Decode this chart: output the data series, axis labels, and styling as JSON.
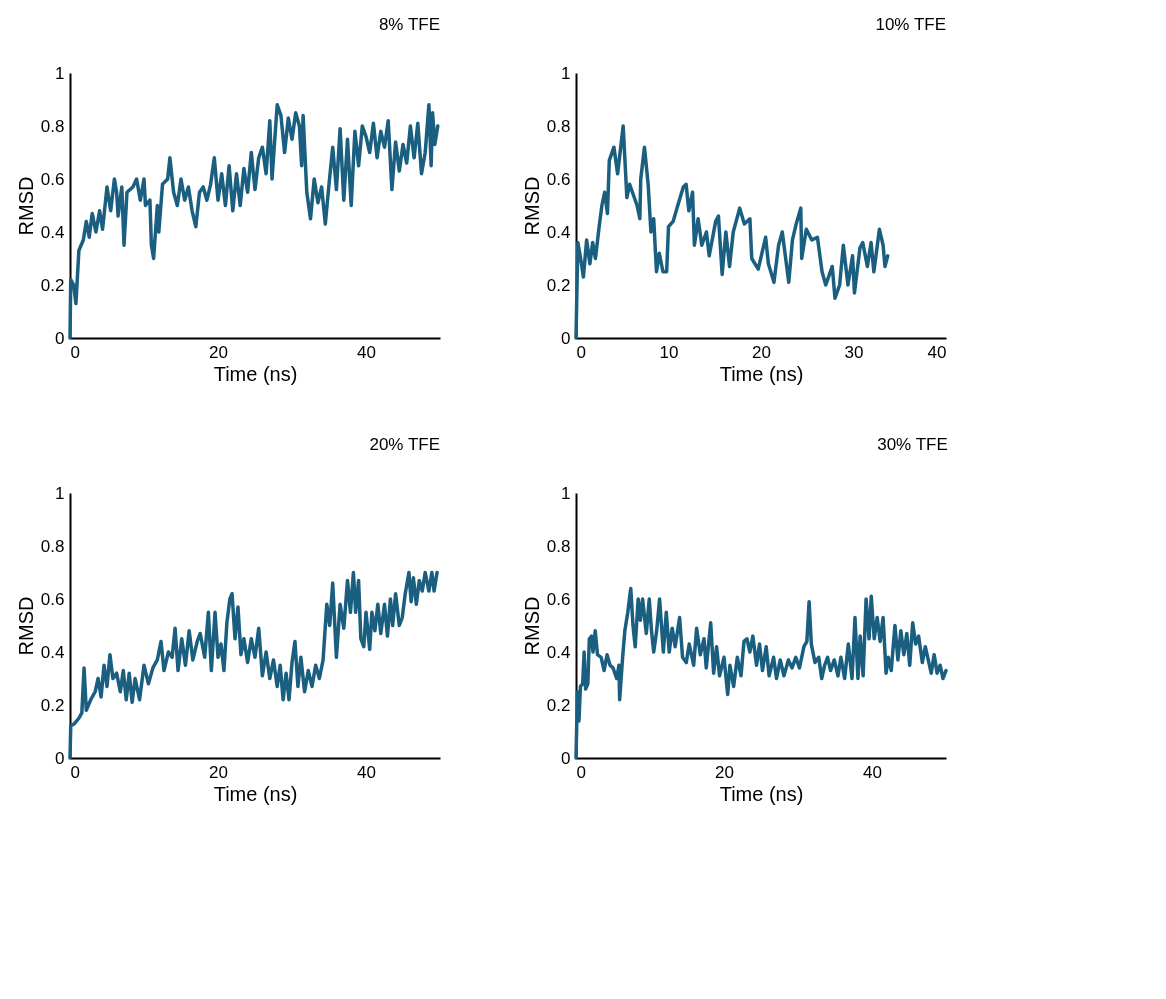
{
  "chart_data": [
    {
      "type": "line",
      "title": "8% TFE",
      "xlabel": "Time (ns)",
      "ylabel": "RMSD",
      "xlim": [
        0,
        50
      ],
      "xticks": [
        0,
        20,
        40
      ],
      "ylim": [
        0,
        1
      ],
      "yticks": [
        0,
        0.2,
        0.4,
        0.6,
        0.8,
        1
      ],
      "x": [
        0,
        0.1,
        0.5,
        0.8,
        1.2,
        1.8,
        2.2,
        2.6,
        3,
        3.5,
        4,
        4.4,
        5,
        5.5,
        6,
        6.3,
        6.5,
        7,
        7.3,
        7.7,
        8.5,
        9,
        9.5,
        10,
        10.2,
        10.8,
        11,
        11.3,
        11.8,
        12,
        12.5,
        13.2,
        13.5,
        14,
        14.5,
        15,
        15.5,
        16,
        16.5,
        17,
        17.5,
        18,
        18.5,
        19,
        19.5,
        20,
        20.5,
        21,
        21.5,
        22,
        22.5,
        23,
        23.5,
        24,
        24.5,
        25,
        25.5,
        26,
        26.5,
        27,
        27.3,
        28,
        28.5,
        29,
        29.5,
        30,
        30.5,
        31,
        31.3,
        31.5,
        32,
        32.5,
        33,
        33.5,
        34,
        34.5,
        35,
        35.5,
        36,
        36.5,
        37,
        37.5,
        38,
        38.5,
        39,
        39.5,
        40,
        40.5,
        41,
        41.5,
        42,
        42.5,
        43,
        43.5,
        44,
        44.5,
        45,
        45.5,
        46,
        46.5,
        47,
        47.5,
        48,
        48.5,
        48.8,
        49,
        49.3,
        49.7
      ],
      "series": [
        {
          "color": "#1a5f80",
          "values": [
            0,
            0.22,
            0.2,
            0.13,
            0.33,
            0.37,
            0.44,
            0.38,
            0.47,
            0.4,
            0.48,
            0.41,
            0.57,
            0.48,
            0.6,
            0.55,
            0.46,
            0.57,
            0.35,
            0.55,
            0.57,
            0.6,
            0.52,
            0.6,
            0.5,
            0.52,
            0.35,
            0.3,
            0.5,
            0.4,
            0.58,
            0.6,
            0.68,
            0.55,
            0.5,
            0.6,
            0.52,
            0.57,
            0.48,
            0.42,
            0.55,
            0.57,
            0.52,
            0.58,
            0.68,
            0.52,
            0.62,
            0.5,
            0.65,
            0.48,
            0.62,
            0.5,
            0.64,
            0.55,
            0.7,
            0.56,
            0.68,
            0.72,
            0.62,
            0.82,
            0.6,
            0.88,
            0.84,
            0.7,
            0.83,
            0.75,
            0.85,
            0.8,
            0.65,
            0.84,
            0.55,
            0.45,
            0.6,
            0.51,
            0.57,
            0.43,
            0.58,
            0.72,
            0.56,
            0.79,
            0.52,
            0.75,
            0.5,
            0.78,
            0.65,
            0.8,
            0.76,
            0.7,
            0.81,
            0.68,
            0.78,
            0.72,
            0.82,
            0.56,
            0.74,
            0.63,
            0.73,
            0.66,
            0.8,
            0.68,
            0.81,
            0.62,
            0.7,
            0.88,
            0.65,
            0.85,
            0.73,
            0.8
          ]
        }
      ]
    },
    {
      "type": "line",
      "title": "10% TFE",
      "xlabel": "Time (ns)",
      "ylabel": "RMSD",
      "xlim": [
        0,
        40
      ],
      "xticks": [
        0,
        10,
        20,
        30,
        40
      ],
      "ylim": [
        0,
        1
      ],
      "yticks": [
        0,
        0.2,
        0.4,
        0.6,
        0.8,
        1
      ],
      "x": [
        0,
        0.2,
        0.5,
        0.8,
        1.15,
        1.5,
        1.8,
        2.1,
        2.5,
        2.8,
        3.1,
        3.4,
        3.6,
        4.1,
        4.5,
        5.1,
        5.5,
        5.8,
        6.1,
        6.6,
        6.9,
        7.0,
        7.4,
        7.8,
        8.1,
        8.4,
        8.7,
        9.0,
        9.4,
        9.8,
        10.0,
        10.5,
        11.0,
        11.6,
        11.9,
        12.2,
        12.6,
        12.8,
        13.2,
        13.6,
        14.1,
        14.4,
        15.1,
        15.4,
        15.8,
        16.2,
        16.6,
        17.0,
        17.7,
        18.2,
        18.8,
        19.0,
        19.7,
        20.5,
        20.8,
        21.4,
        21.9,
        22.3,
        23.0,
        23.4,
        23.8,
        24.3,
        24.4,
        24.9,
        25.5,
        26.1,
        26.6,
        27.0,
        27.7,
        28.0,
        28.5,
        28.9,
        29.4,
        29.9,
        30.1,
        30.7,
        31.0,
        31.5,
        31.9,
        32.2,
        32.8,
        33.2,
        33.4,
        33.7
      ],
      "series": [
        {
          "color": "#1a5f80",
          "values": [
            0,
            0.36,
            0.3,
            0.23,
            0.37,
            0.28,
            0.36,
            0.3,
            0.42,
            0.5,
            0.55,
            0.47,
            0.67,
            0.72,
            0.62,
            0.8,
            0.53,
            0.58,
            0.55,
            0.5,
            0.45,
            0.6,
            0.72,
            0.58,
            0.4,
            0.45,
            0.25,
            0.32,
            0.25,
            0.25,
            0.42,
            0.44,
            0.5,
            0.57,
            0.58,
            0.48,
            0.55,
            0.35,
            0.45,
            0.35,
            0.4,
            0.31,
            0.44,
            0.46,
            0.24,
            0.4,
            0.27,
            0.4,
            0.49,
            0.43,
            0.45,
            0.3,
            0.26,
            0.38,
            0.28,
            0.21,
            0.35,
            0.4,
            0.21,
            0.37,
            0.43,
            0.49,
            0.3,
            0.41,
            0.37,
            0.38,
            0.25,
            0.2,
            0.27,
            0.15,
            0.2,
            0.35,
            0.2,
            0.31,
            0.17,
            0.34,
            0.36,
            0.27,
            0.36,
            0.25,
            0.41,
            0.35,
            0.27,
            0.31
          ]
        }
      ]
    },
    {
      "type": "line",
      "title": "20% TFE",
      "xlabel": "Time (ns)",
      "ylabel": "RMSD",
      "xlim": [
        0,
        50
      ],
      "xticks": [
        0,
        20,
        40
      ],
      "ylim": [
        0,
        1
      ],
      "yticks": [
        0,
        0.2,
        0.4,
        0.6,
        0.8,
        1
      ],
      "x": [
        0,
        0.1,
        0.6,
        1.2,
        1.6,
        1.9,
        2.2,
        2.8,
        3.4,
        3.8,
        4.2,
        4.6,
        5,
        5.4,
        5.8,
        6.3,
        6.8,
        7.2,
        7.6,
        8,
        8.4,
        8.8,
        9.4,
        10,
        10.6,
        11.2,
        11.8,
        12.3,
        12.7,
        13.3,
        13.8,
        14.2,
        14.6,
        15.1,
        15.6,
        16.1,
        16.6,
        17.2,
        17.6,
        18.2,
        18.7,
        19.1,
        19.6,
        20,
        20.4,
        20.8,
        21.2,
        21.6,
        21.9,
        22.3,
        22.7,
        23.1,
        23.5,
        24,
        24.5,
        25,
        25.5,
        26,
        26.5,
        27,
        27.5,
        28,
        28.4,
        28.8,
        29.2,
        29.6,
        30,
        30.4,
        30.8,
        31.2,
        31.7,
        32.2,
        32.7,
        33.2,
        33.7,
        34.2,
        34.7,
        35.1,
        35.5,
        36,
        36.5,
        37,
        37.5,
        37.9,
        38.3,
        38.6,
        39,
        39.3,
        39.7,
        40,
        40.5,
        40.8,
        41.2,
        41.6,
        42,
        42.5,
        42.9,
        43.3,
        43.6,
        44,
        44.5,
        44.9,
        45.3,
        45.8,
        46.1,
        46.4,
        46.8,
        47.2,
        47.6,
        48,
        48.5,
        48.9,
        49.2,
        49.6
      ],
      "series": [
        {
          "color": "#1a5f80",
          "values": [
            0,
            0.12,
            0.13,
            0.15,
            0.17,
            0.34,
            0.18,
            0.22,
            0.25,
            0.3,
            0.23,
            0.35,
            0.27,
            0.39,
            0.3,
            0.32,
            0.25,
            0.33,
            0.22,
            0.32,
            0.21,
            0.3,
            0.22,
            0.35,
            0.28,
            0.34,
            0.37,
            0.44,
            0.33,
            0.4,
            0.38,
            0.49,
            0.33,
            0.45,
            0.35,
            0.48,
            0.37,
            0.44,
            0.47,
            0.38,
            0.55,
            0.33,
            0.55,
            0.38,
            0.43,
            0.33,
            0.51,
            0.6,
            0.62,
            0.45,
            0.57,
            0.39,
            0.45,
            0.36,
            0.45,
            0.38,
            0.49,
            0.31,
            0.4,
            0.3,
            0.37,
            0.27,
            0.35,
            0.22,
            0.32,
            0.22,
            0.36,
            0.44,
            0.27,
            0.38,
            0.25,
            0.33,
            0.27,
            0.35,
            0.3,
            0.37,
            0.58,
            0.5,
            0.66,
            0.38,
            0.58,
            0.49,
            0.67,
            0.55,
            0.7,
            0.55,
            0.67,
            0.45,
            0.42,
            0.55,
            0.41,
            0.55,
            0.48,
            0.58,
            0.47,
            0.58,
            0.46,
            0.6,
            0.5,
            0.62,
            0.5,
            0.53,
            0.62,
            0.7,
            0.59,
            0.68,
            0.58,
            0.67,
            0.63,
            0.7,
            0.63,
            0.7,
            0.63,
            0.7
          ]
        }
      ]
    },
    {
      "type": "line",
      "title": "30% TFE",
      "xlabel": "Time (ns)",
      "ylabel": "RMSD",
      "xlim": [
        0,
        50
      ],
      "xticks": [
        0,
        20,
        40
      ],
      "ylim": [
        0,
        1
      ],
      "yticks": [
        0,
        0.2,
        0.4,
        0.6,
        0.8,
        1
      ],
      "x": [
        0,
        0.2,
        0.4,
        0.6,
        0.9,
        1.1,
        1.3,
        1.6,
        1.8,
        2.1,
        2.3,
        2.6,
        2.9,
        3.4,
        3.8,
        4.2,
        4.6,
        5,
        5.5,
        5.8,
        5.9,
        6.3,
        6.6,
        7,
        7.4,
        7.7,
        8,
        8.4,
        8.7,
        9,
        9.5,
        9.9,
        10.2,
        10.5,
        10.9,
        11.3,
        11.8,
        12.2,
        12.6,
        13,
        13.4,
        14,
        14.4,
        14.9,
        15.3,
        15.9,
        16.3,
        16.8,
        17.3,
        17.6,
        18.2,
        18.6,
        19,
        19.4,
        20,
        20.5,
        20.8,
        21.3,
        21.8,
        22.3,
        22.7,
        23.1,
        23.5,
        23.9,
        24.4,
        24.8,
        25.2,
        25.7,
        26.1,
        26.7,
        27.1,
        27.6,
        28.1,
        28.7,
        29.2,
        29.7,
        30.2,
        30.8,
        31.2,
        31.5,
        31.8,
        32.3,
        32.8,
        33.2,
        33.6,
        34,
        34.4,
        34.9,
        35.4,
        35.8,
        36.3,
        36.8,
        37.3,
        37.7,
        38.1,
        38.4,
        38.8,
        39.2,
        39.6,
        39.9,
        40.3,
        40.7,
        41.1,
        41.5,
        41.9,
        42.2,
        42.6,
        43.1,
        43.5,
        43.9,
        44.3,
        44.7,
        45.1,
        45.5,
        45.9,
        46.3,
        46.8,
        47.2,
        47.6,
        48,
        48.4,
        48.8,
        49.2,
        49.6,
        50
      ],
      "series": [
        {
          "color": "#1a5f80",
          "values": [
            0,
            0.25,
            0.14,
            0.27,
            0.28,
            0.4,
            0.26,
            0.28,
            0.45,
            0.46,
            0.4,
            0.48,
            0.39,
            0.38,
            0.33,
            0.39,
            0.35,
            0.34,
            0.3,
            0.35,
            0.22,
            0.38,
            0.48,
            0.55,
            0.64,
            0.5,
            0.42,
            0.6,
            0.52,
            0.6,
            0.47,
            0.6,
            0.48,
            0.4,
            0.48,
            0.6,
            0.4,
            0.55,
            0.4,
            0.49,
            0.42,
            0.53,
            0.38,
            0.36,
            0.43,
            0.35,
            0.49,
            0.39,
            0.45,
            0.34,
            0.51,
            0.32,
            0.42,
            0.31,
            0.38,
            0.24,
            0.35,
            0.27,
            0.38,
            0.31,
            0.44,
            0.45,
            0.4,
            0.46,
            0.35,
            0.43,
            0.33,
            0.42,
            0.31,
            0.38,
            0.3,
            0.37,
            0.31,
            0.37,
            0.34,
            0.38,
            0.34,
            0.42,
            0.44,
            0.59,
            0.43,
            0.36,
            0.38,
            0.3,
            0.35,
            0.38,
            0.33,
            0.37,
            0.31,
            0.38,
            0.3,
            0.43,
            0.3,
            0.53,
            0.3,
            0.46,
            0.31,
            0.6,
            0.45,
            0.61,
            0.45,
            0.53,
            0.44,
            0.53,
            0.32,
            0.38,
            0.33,
            0.5,
            0.37,
            0.48,
            0.39,
            0.47,
            0.35,
            0.51,
            0.43,
            0.46,
            0.36,
            0.42,
            0.37,
            0.32,
            0.39,
            0.32,
            0.35,
            0.3,
            0.33
          ]
        }
      ]
    }
  ]
}
